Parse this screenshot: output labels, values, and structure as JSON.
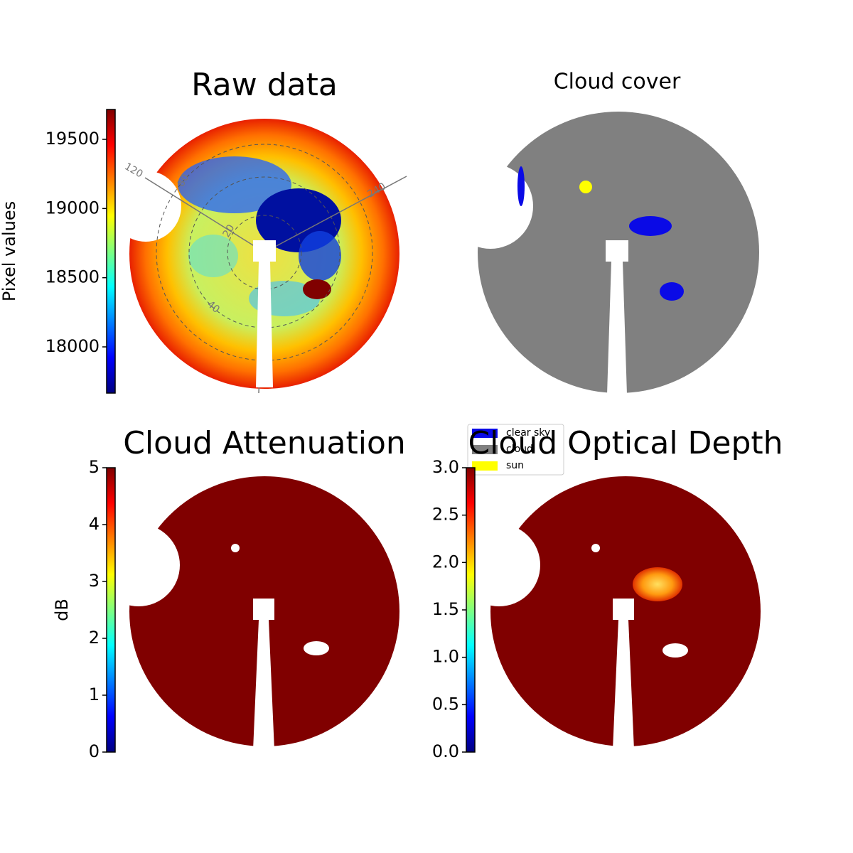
{
  "chart_data": [
    {
      "type": "image",
      "title": "Raw data",
      "colorbar_label": "Pixel values",
      "cmap": "jet",
      "clim": [
        17666,
        19716
      ],
      "cticks": [
        18000,
        18500,
        19000,
        19500
      ],
      "annotations": [
        "120",
        "240",
        "80",
        "20",
        "40"
      ]
    },
    {
      "type": "image",
      "title": "Cloud cover",
      "series": [
        {
          "name": "clear sky",
          "color": "#0a0ae6"
        },
        {
          "name": "cloud",
          "color": "#808080"
        },
        {
          "name": "sun",
          "color": "#ffff00"
        }
      ]
    },
    {
      "type": "image",
      "title": "Cloud Attenuation",
      "colorbar_label": "dB",
      "cmap": "jet",
      "clim": [
        0,
        5
      ],
      "cticks": [
        0,
        1,
        2,
        3,
        4,
        5
      ]
    },
    {
      "type": "image",
      "title": "Cloud Optical Depth",
      "cmap": "jet",
      "clim": [
        0,
        3
      ],
      "cticks": [
        {
          "value": 0,
          "label": "0.0"
        },
        0.5,
        {
          "value": 1,
          "label": "1.0"
        },
        1.5,
        {
          "value": 2,
          "label": "2.0"
        },
        2.5,
        {
          "value": 3,
          "label": "3.0"
        }
      ]
    }
  ]
}
